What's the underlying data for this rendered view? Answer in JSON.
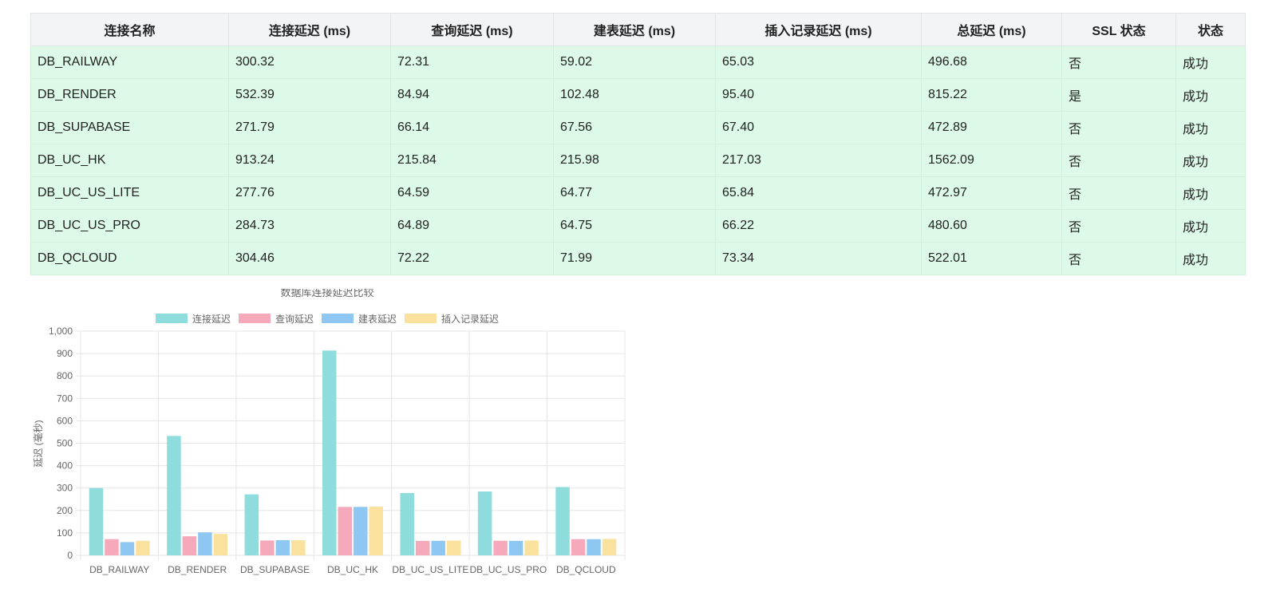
{
  "table": {
    "headers": [
      "连接名称",
      "连接延迟 (ms)",
      "查询延迟 (ms)",
      "建表延迟 (ms)",
      "插入记录延迟 (ms)",
      "总延迟 (ms)",
      "SSL 状态",
      "状态"
    ],
    "rows": [
      [
        "DB_RAILWAY",
        "300.32",
        "72.31",
        "59.02",
        "65.03",
        "496.68",
        "否",
        "成功"
      ],
      [
        "DB_RENDER",
        "532.39",
        "84.94",
        "102.48",
        "95.40",
        "815.22",
        "是",
        "成功"
      ],
      [
        "DB_SUPABASE",
        "271.79",
        "66.14",
        "67.56",
        "67.40",
        "472.89",
        "否",
        "成功"
      ],
      [
        "DB_UC_HK",
        "913.24",
        "215.84",
        "215.98",
        "217.03",
        "1562.09",
        "否",
        "成功"
      ],
      [
        "DB_UC_US_LITE",
        "277.76",
        "64.59",
        "64.77",
        "65.84",
        "472.97",
        "否",
        "成功"
      ],
      [
        "DB_UC_US_PRO",
        "284.73",
        "64.89",
        "64.75",
        "66.22",
        "480.60",
        "否",
        "成功"
      ],
      [
        "DB_QCLOUD",
        "304.46",
        "72.22",
        "71.99",
        "73.34",
        "522.01",
        "否",
        "成功"
      ]
    ]
  },
  "chart_data": {
    "type": "bar",
    "title": "数据库连接延迟比较",
    "ylabel": "延迟 (毫秒)",
    "xlabel": "",
    "ylim": [
      0,
      1000
    ],
    "yticks": [
      "0",
      "100",
      "200",
      "300",
      "400",
      "500",
      "600",
      "700",
      "800",
      "900",
      "1,000"
    ],
    "ytick_values": [
      0,
      100,
      200,
      300,
      400,
      500,
      600,
      700,
      800,
      900,
      1000
    ],
    "legend_position": "top",
    "grid": true,
    "categories": [
      "DB_RAILWAY",
      "DB_RENDER",
      "DB_SUPABASE",
      "DB_UC_HK",
      "DB_UC_US_LITE",
      "DB_UC_US_PRO",
      "DB_QCLOUD"
    ],
    "series": [
      {
        "name": "连接延迟",
        "color": "#8edcdc",
        "values": [
          300.32,
          532.39,
          271.79,
          913.24,
          277.76,
          284.73,
          304.46
        ]
      },
      {
        "name": "查询延迟",
        "color": "#f5a9ba",
        "values": [
          72.31,
          84.94,
          66.14,
          215.84,
          64.59,
          64.89,
          72.22
        ]
      },
      {
        "name": "建表延迟",
        "color": "#8ec8f2",
        "values": [
          59.02,
          102.48,
          67.56,
          215.98,
          64.77,
          64.75,
          71.99
        ]
      },
      {
        "name": "插入记录延迟",
        "color": "#fbe19e",
        "values": [
          65.03,
          95.4,
          67.4,
          217.03,
          65.84,
          66.22,
          73.34
        ]
      }
    ]
  }
}
